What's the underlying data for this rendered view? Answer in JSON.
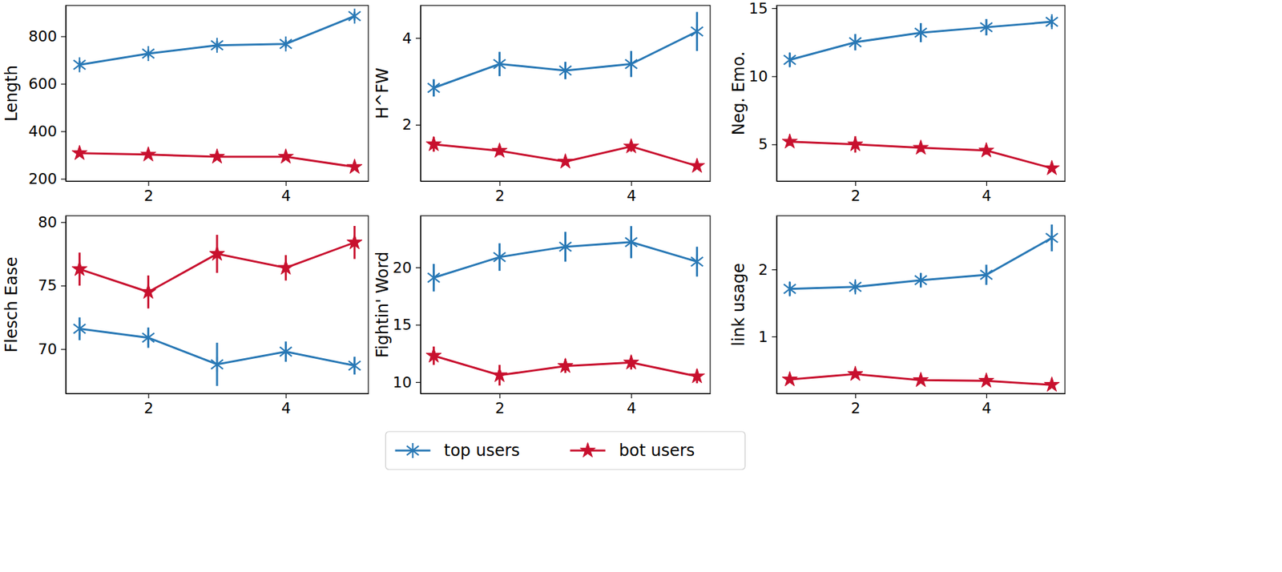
{
  "chart_data": [
    {
      "type": "line",
      "ylabel": "Length",
      "x": [
        1,
        2,
        3,
        4,
        5
      ],
      "xlim": [
        0.8,
        5.2
      ],
      "xticks": [
        2,
        4
      ],
      "ylim": [
        190,
        930
      ],
      "yticks": [
        200,
        400,
        600,
        800
      ],
      "legend": "bottom",
      "series": [
        {
          "name": "top users",
          "color": "#2878b5",
          "marker": "asterisk",
          "values": [
            680,
            727,
            762,
            768,
            885
          ],
          "errors": [
            16,
            16,
            18,
            16,
            18
          ]
        },
        {
          "name": "bot users",
          "color": "#c8102e",
          "marker": "star",
          "values": [
            308,
            302,
            293,
            293,
            250
          ],
          "errors": [
            8,
            7,
            7,
            7,
            8
          ]
        }
      ]
    },
    {
      "type": "line",
      "ylabel": "H^FW",
      "x": [
        1,
        2,
        3,
        4,
        5
      ],
      "xlim": [
        0.8,
        5.2
      ],
      "xticks": [
        2,
        4
      ],
      "ylim": [
        0.7,
        4.75
      ],
      "yticks": [
        2,
        4
      ],
      "series": [
        {
          "name": "top users",
          "color": "#2878b5",
          "marker": "asterisk",
          "values": [
            2.85,
            3.4,
            3.25,
            3.4,
            4.15
          ],
          "errors": [
            0.2,
            0.28,
            0.2,
            0.3,
            0.45
          ]
        },
        {
          "name": "bot users",
          "color": "#c8102e",
          "marker": "star",
          "values": [
            1.55,
            1.4,
            1.15,
            1.5,
            1.05
          ],
          "errors": [
            0.17,
            0.1,
            0.05,
            0.12,
            0.06
          ]
        }
      ]
    },
    {
      "type": "line",
      "ylabel": "Neg. Emo.",
      "x": [
        1,
        2,
        3,
        4,
        5
      ],
      "xlim": [
        0.8,
        5.2
      ],
      "xticks": [
        2,
        4
      ],
      "ylim": [
        2.3,
        15.2
      ],
      "yticks": [
        5,
        10,
        15
      ],
      "series": [
        {
          "name": "top users",
          "color": "#2878b5",
          "marker": "asterisk",
          "values": [
            11.2,
            12.5,
            13.2,
            13.6,
            14.0
          ],
          "errors": [
            0.5,
            0.6,
            0.7,
            0.6,
            0.4
          ]
        },
        {
          "name": "bot users",
          "color": "#c8102e",
          "marker": "star",
          "values": [
            5.2,
            5.0,
            4.75,
            4.55,
            3.25
          ],
          "errors": [
            0.3,
            0.6,
            0.3,
            0.3,
            0.2
          ]
        }
      ]
    },
    {
      "type": "line",
      "ylabel": "Flesch Ease",
      "x": [
        1,
        2,
        3,
        4,
        5
      ],
      "xlim": [
        0.8,
        5.2
      ],
      "xticks": [
        2,
        4
      ],
      "ylim": [
        66.5,
        80.5
      ],
      "yticks": [
        70,
        75,
        80
      ],
      "series": [
        {
          "name": "top users",
          "color": "#2878b5",
          "marker": "asterisk",
          "values": [
            71.6,
            70.9,
            68.8,
            69.8,
            68.7
          ],
          "errors": [
            0.9,
            0.8,
            1.7,
            0.8,
            0.7
          ]
        },
        {
          "name": "bot users",
          "color": "#c8102e",
          "marker": "star",
          "values": [
            76.3,
            74.5,
            77.5,
            76.4,
            78.4
          ],
          "errors": [
            1.3,
            1.3,
            1.5,
            1.0,
            1.3
          ]
        }
      ]
    },
    {
      "type": "line",
      "ylabel": "Fightin' Word",
      "x": [
        1,
        2,
        3,
        4,
        5
      ],
      "xlim": [
        0.8,
        5.2
      ],
      "xticks": [
        2,
        4
      ],
      "ylim": [
        9,
        24.5
      ],
      "yticks": [
        10,
        15,
        20
      ],
      "series": [
        {
          "name": "top users",
          "color": "#2878b5",
          "marker": "asterisk",
          "values": [
            19.1,
            20.9,
            21.8,
            22.2,
            20.5
          ],
          "errors": [
            1.2,
            1.2,
            1.3,
            1.4,
            1.3
          ]
        },
        {
          "name": "bot users",
          "color": "#c8102e",
          "marker": "star",
          "values": [
            12.3,
            10.6,
            11.4,
            11.7,
            10.5
          ],
          "errors": [
            0.8,
            0.9,
            0.6,
            0.6,
            0.6
          ]
        }
      ]
    },
    {
      "type": "line",
      "ylabel": "link usage",
      "x": [
        1,
        2,
        3,
        4,
        5
      ],
      "xlim": [
        0.8,
        5.2
      ],
      "xticks": [
        2,
        4
      ],
      "ylim": [
        0.15,
        2.8
      ],
      "yticks": [
        1,
        2
      ],
      "series": [
        {
          "name": "top users",
          "color": "#2878b5",
          "marker": "asterisk",
          "values": [
            1.71,
            1.74,
            1.84,
            1.92,
            2.47
          ],
          "errors": [
            0.1,
            0.08,
            0.1,
            0.15,
            0.2
          ]
        },
        {
          "name": "bot users",
          "color": "#c8102e",
          "marker": "star",
          "values": [
            0.36,
            0.44,
            0.35,
            0.34,
            0.28
          ],
          "errors": [
            0.03,
            0.03,
            0.03,
            0.03,
            0.03
          ]
        }
      ]
    }
  ]
}
